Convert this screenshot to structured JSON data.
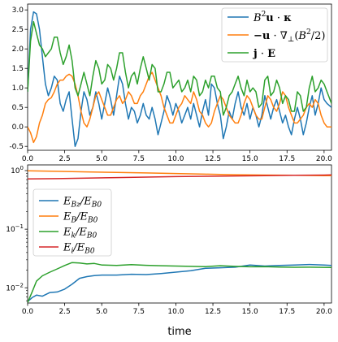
{
  "chart_data": [
    {
      "type": "line",
      "xlim": [
        0,
        20.5
      ],
      "ylim": [
        -0.6,
        3.15
      ],
      "yscale": "linear",
      "grid": false,
      "legend_position": "top-right",
      "xticks": [
        "0.0",
        "2.5",
        "5.0",
        "7.5",
        "10.0",
        "12.5",
        "15.0",
        "17.5",
        "20.0"
      ],
      "yticks": [
        "-0.5",
        "0.0",
        "0.5",
        "1.0",
        "1.5",
        "2.0",
        "2.5",
        "3.0"
      ],
      "series": [
        {
          "name": "B²u · κ",
          "color": "#1f77b4",
          "x": [
            0,
            0.2,
            0.4,
            0.6,
            0.8,
            1.0,
            1.2,
            1.4,
            1.6,
            1.8,
            2.0,
            2.2,
            2.4,
            2.6,
            2.8,
            3.0,
            3.2,
            3.4,
            3.6,
            3.8,
            4.0,
            4.2,
            4.4,
            4.6,
            4.8,
            5.0,
            5.2,
            5.4,
            5.6,
            5.8,
            6.0,
            6.2,
            6.4,
            6.6,
            6.8,
            7.0,
            7.2,
            7.4,
            7.6,
            7.8,
            8.0,
            8.2,
            8.4,
            8.6,
            8.8,
            9.0,
            9.2,
            9.4,
            9.6,
            9.8,
            10.0,
            10.2,
            10.4,
            10.6,
            10.8,
            11.0,
            11.2,
            11.4,
            11.6,
            11.8,
            12.0,
            12.2,
            12.4,
            12.6,
            12.8,
            13.0,
            13.2,
            13.4,
            13.6,
            13.8,
            14.0,
            14.2,
            14.4,
            14.6,
            14.8,
            15.0,
            15.2,
            15.4,
            15.6,
            15.8,
            16.0,
            16.2,
            16.4,
            16.6,
            16.8,
            17.0,
            17.2,
            17.4,
            17.6,
            17.8,
            18.0,
            18.2,
            18.4,
            18.6,
            18.8,
            19.0,
            19.2,
            19.4,
            19.6,
            19.8,
            20.0,
            20.2,
            20.5
          ],
          "y": [
            0.9,
            2.5,
            2.95,
            2.9,
            2.5,
            1.8,
            1.1,
            0.8,
            1.0,
            1.3,
            1.2,
            0.6,
            0.4,
            0.7,
            0.9,
            0.2,
            -0.5,
            -0.3,
            0.4,
            0.9,
            0.7,
            0.3,
            0.5,
            0.9,
            0.6,
            0.2,
            0.6,
            1.0,
            0.7,
            0.3,
            0.8,
            1.3,
            1.1,
            0.6,
            0.2,
            0.5,
            0.4,
            0.1,
            0.3,
            0.6,
            0.3,
            0.2,
            0.5,
            0.2,
            -0.2,
            0.1,
            0.4,
            0.8,
            0.6,
            0.3,
            0.6,
            0.4,
            0.1,
            0.3,
            0.5,
            0.2,
            0.6,
            0.3,
            0.0,
            0.4,
            0.7,
            0.3,
            1.1,
            1.0,
            0.6,
            0.3,
            -0.3,
            0.0,
            0.4,
            0.2,
            0.6,
            0.9,
            0.5,
            0.3,
            0.6,
            0.2,
            0.5,
            0.3,
            0.0,
            0.3,
            0.8,
            0.5,
            0.2,
            0.5,
            0.7,
            0.4,
            0.1,
            0.3,
            0.0,
            -0.2,
            0.2,
            0.5,
            0.2,
            -0.2,
            0.1,
            0.5,
            0.8,
            0.3,
            0.6,
            1.0,
            0.7,
            0.6,
            0.5
          ]
        },
        {
          "name": "−u · ∇⊥(B²/2)",
          "color": "#ff7f0e",
          "x": [
            0,
            0.2,
            0.4,
            0.6,
            0.8,
            1.0,
            1.2,
            1.4,
            1.6,
            1.8,
            2.0,
            2.2,
            2.4,
            2.6,
            2.8,
            3.0,
            3.2,
            3.4,
            3.6,
            3.8,
            4.0,
            4.2,
            4.4,
            4.6,
            4.8,
            5.0,
            5.2,
            5.4,
            5.6,
            5.8,
            6.0,
            6.2,
            6.4,
            6.6,
            6.8,
            7.0,
            7.2,
            7.4,
            7.6,
            7.8,
            8.0,
            8.2,
            8.4,
            8.6,
            8.8,
            9.0,
            9.2,
            9.4,
            9.6,
            9.8,
            10.0,
            10.2,
            10.4,
            10.6,
            10.8,
            11.0,
            11.2,
            11.4,
            11.6,
            11.8,
            12.0,
            12.2,
            12.4,
            12.6,
            12.8,
            13.0,
            13.2,
            13.4,
            13.6,
            13.8,
            14.0,
            14.2,
            14.4,
            14.6,
            14.8,
            15.0,
            15.2,
            15.4,
            15.6,
            15.8,
            16.0,
            16.2,
            16.4,
            16.6,
            16.8,
            17.0,
            17.2,
            17.4,
            17.6,
            17.8,
            18.0,
            18.2,
            18.4,
            18.6,
            18.8,
            19.0,
            19.2,
            19.4,
            19.6,
            19.8,
            20.0,
            20.2,
            20.5
          ],
          "y": [
            0.0,
            -0.15,
            -0.4,
            -0.25,
            0.1,
            0.3,
            0.6,
            0.7,
            0.75,
            0.9,
            1.1,
            1.2,
            1.2,
            1.3,
            1.35,
            1.3,
            1.1,
            0.8,
            0.4,
            0.1,
            0.0,
            0.2,
            0.5,
            0.8,
            0.9,
            0.7,
            0.5,
            0.3,
            0.3,
            0.5,
            0.7,
            0.8,
            0.6,
            0.7,
            0.9,
            0.8,
            0.6,
            0.6,
            0.8,
            0.9,
            1.1,
            1.3,
            1.4,
            1.2,
            1.0,
            0.8,
            0.5,
            0.3,
            0.1,
            0.1,
            0.3,
            0.5,
            0.6,
            0.8,
            0.7,
            0.6,
            0.9,
            0.7,
            0.4,
            0.3,
            0.1,
            0.0,
            0.1,
            0.4,
            0.6,
            0.8,
            0.7,
            0.5,
            0.3,
            0.2,
            0.1,
            0.1,
            0.3,
            0.6,
            0.8,
            0.7,
            0.5,
            0.3,
            0.2,
            0.2,
            0.5,
            0.8,
            0.7,
            0.5,
            0.4,
            0.6,
            0.9,
            0.8,
            0.5,
            0.3,
            0.1,
            0.1,
            0.2,
            0.3,
            0.5,
            0.6,
            0.5,
            0.7,
            0.6,
            0.3,
            0.1,
            0.0,
            0.0
          ]
        },
        {
          "name": "j · E",
          "color": "#2ca02c",
          "x": [
            0,
            0.2,
            0.4,
            0.6,
            0.8,
            1.0,
            1.2,
            1.4,
            1.6,
            1.8,
            2.0,
            2.2,
            2.4,
            2.6,
            2.8,
            3.0,
            3.2,
            3.4,
            3.6,
            3.8,
            4.0,
            4.2,
            4.4,
            4.6,
            4.8,
            5.0,
            5.2,
            5.4,
            5.6,
            5.8,
            6.0,
            6.2,
            6.4,
            6.6,
            6.8,
            7.0,
            7.2,
            7.4,
            7.6,
            7.8,
            8.0,
            8.2,
            8.4,
            8.6,
            8.8,
            9.0,
            9.2,
            9.4,
            9.6,
            9.8,
            10.0,
            10.2,
            10.4,
            10.6,
            10.8,
            11.0,
            11.2,
            11.4,
            11.6,
            11.8,
            12.0,
            12.2,
            12.4,
            12.6,
            12.8,
            13.0,
            13.2,
            13.4,
            13.6,
            13.8,
            14.0,
            14.2,
            14.4,
            14.6,
            14.8,
            15.0,
            15.2,
            15.4,
            15.6,
            15.8,
            16.0,
            16.2,
            16.4,
            16.6,
            16.8,
            17.0,
            17.2,
            17.4,
            17.6,
            17.8,
            18.0,
            18.2,
            18.4,
            18.6,
            18.8,
            19.0,
            19.2,
            19.4,
            19.6,
            19.8,
            20.0,
            20.2,
            20.5
          ],
          "y": [
            0.9,
            2.2,
            2.7,
            2.4,
            2.1,
            2.0,
            1.8,
            1.9,
            2.0,
            2.3,
            2.3,
            1.9,
            1.6,
            1.8,
            2.1,
            1.7,
            1.0,
            0.8,
            1.1,
            1.4,
            1.1,
            0.8,
            1.3,
            1.7,
            1.5,
            1.1,
            1.2,
            1.6,
            1.5,
            1.2,
            1.5,
            1.9,
            1.9,
            1.4,
            1.0,
            1.3,
            1.4,
            1.1,
            1.5,
            1.8,
            1.5,
            1.2,
            1.6,
            1.5,
            0.9,
            0.9,
            1.1,
            1.4,
            1.4,
            1.0,
            1.1,
            1.2,
            0.9,
            1.0,
            1.2,
            0.9,
            1.3,
            1.2,
            0.8,
            0.9,
            1.2,
            1.0,
            1.3,
            1.3,
            1.0,
            0.9,
            0.3,
            0.5,
            0.8,
            0.9,
            1.1,
            1.3,
            1.0,
            0.8,
            1.2,
            0.9,
            1.0,
            0.9,
            0.5,
            0.6,
            1.2,
            1.3,
            0.8,
            0.9,
            1.2,
            1.0,
            0.6,
            0.8,
            0.7,
            0.4,
            0.4,
            0.9,
            0.8,
            0.4,
            0.5,
            1.0,
            1.3,
            0.9,
            1.0,
            1.2,
            1.1,
            0.9,
            0.6
          ]
        }
      ]
    },
    {
      "type": "line",
      "xlim": [
        0,
        20.5
      ],
      "ylim": [
        0.0055,
        1.25
      ],
      "yscale": "log",
      "grid": false,
      "legend_position": "center-left",
      "xlabel": "time",
      "xticks": [
        "0.0",
        "2.5",
        "5.0",
        "7.5",
        "10.0",
        "12.5",
        "15.0",
        "17.5",
        "20.0"
      ],
      "yticks": [
        {
          "value": 0.01,
          "base": "10",
          "exp": "−2"
        },
        {
          "value": 0.1,
          "base": "10",
          "exp": "−1"
        },
        {
          "value": 1,
          "base": "10",
          "exp": "0"
        }
      ],
      "series": [
        {
          "name": "E_Bz/E_B0",
          "label_main": "E",
          "label_sub": "Bz",
          "label_rest": "/E",
          "label_sub2": "B0",
          "color": "#1f77b4",
          "x": [
            0,
            0.3,
            0.6,
            1.0,
            1.5,
            2.0,
            2.5,
            3.0,
            3.5,
            4.0,
            4.5,
            5.0,
            6.0,
            7.0,
            8.0,
            9.0,
            10.0,
            11.0,
            12.0,
            13.0,
            14.0,
            15.0,
            16.0,
            17.0,
            18.0,
            19.0,
            20.0,
            20.5
          ],
          "y": [
            0.0058,
            0.0068,
            0.0075,
            0.0072,
            0.0083,
            0.0085,
            0.0095,
            0.0115,
            0.0145,
            0.0155,
            0.0162,
            0.0165,
            0.0165,
            0.017,
            0.0168,
            0.0175,
            0.0185,
            0.0195,
            0.0215,
            0.022,
            0.0225,
            0.0245,
            0.0235,
            0.024,
            0.0245,
            0.025,
            0.0245,
            0.024
          ]
        },
        {
          "name": "E_B/E_B0",
          "label_main": "E",
          "label_sub": "B",
          "label_rest": "/E",
          "label_sub2": "B0",
          "color": "#ff7f0e",
          "x": [
            0,
            2,
            4,
            6,
            8,
            10,
            12,
            14,
            16,
            18,
            20,
            20.5
          ],
          "y": [
            0.99,
            0.97,
            0.95,
            0.93,
            0.91,
            0.89,
            0.87,
            0.85,
            0.84,
            0.83,
            0.82,
            0.82
          ]
        },
        {
          "name": "E_k/E_B0",
          "label_main": "E",
          "label_sub": "k",
          "label_rest": "/E",
          "label_sub2": "B0",
          "color": "#2ca02c",
          "x": [
            0,
            0.3,
            0.6,
            1.0,
            1.5,
            2.0,
            2.5,
            3.0,
            3.5,
            4.0,
            4.5,
            5.0,
            6.0,
            7.0,
            8.0,
            9.0,
            10.0,
            11.0,
            12.0,
            13.0,
            14.0,
            15.0,
            16.0,
            17.0,
            18.0,
            19.0,
            20.0,
            20.5
          ],
          "y": [
            0.0056,
            0.0085,
            0.013,
            0.016,
            0.0185,
            0.021,
            0.024,
            0.027,
            0.0265,
            0.0255,
            0.026,
            0.0245,
            0.024,
            0.0248,
            0.0242,
            0.0238,
            0.0235,
            0.0232,
            0.023,
            0.0238,
            0.0232,
            0.0228,
            0.023,
            0.0226,
            0.0224,
            0.0225,
            0.0223,
            0.0222
          ]
        },
        {
          "name": "E_i/E_B0",
          "label_main": "E",
          "label_sub": "i",
          "label_rest": "/E",
          "label_sub2": "B0",
          "color": "#d62728",
          "x": [
            0,
            2,
            4,
            6,
            8,
            10,
            12,
            14,
            16,
            18,
            20,
            20.5
          ],
          "y": [
            0.72,
            0.73,
            0.745,
            0.76,
            0.775,
            0.79,
            0.8,
            0.81,
            0.82,
            0.83,
            0.84,
            0.845
          ]
        }
      ]
    }
  ]
}
